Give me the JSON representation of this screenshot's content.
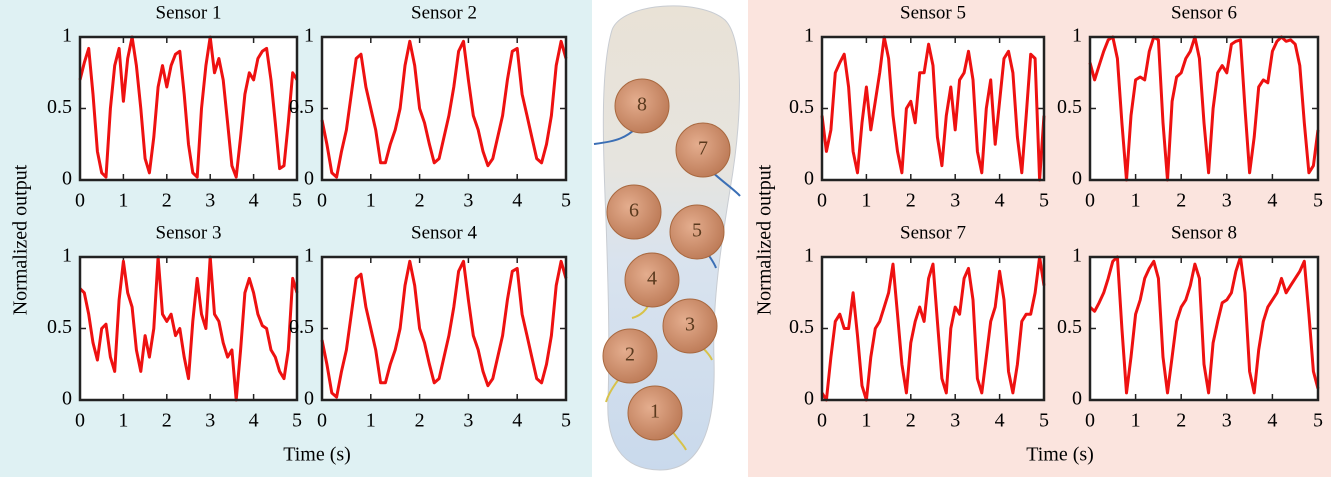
{
  "chart_data": [
    {
      "type": "line",
      "title": "Sensor 1",
      "color": "#ee1111",
      "xlim": [
        0,
        5
      ],
      "ylim": [
        0,
        1
      ],
      "xticks": [
        0,
        1,
        2,
        3,
        4,
        5
      ],
      "yticks": [
        0,
        0.5,
        1
      ],
      "x": [
        0,
        0.1,
        0.2,
        0.3,
        0.4,
        0.5,
        0.6,
        0.7,
        0.8,
        0.9,
        1,
        1.1,
        1.2,
        1.3,
        1.4,
        1.5,
        1.6,
        1.7,
        1.8,
        1.9,
        2,
        2.1,
        2.2,
        2.3,
        2.4,
        2.5,
        2.6,
        2.7,
        2.8,
        2.9,
        3,
        3.1,
        3.2,
        3.3,
        3.4,
        3.5,
        3.6,
        3.7,
        3.8,
        3.9,
        4,
        4.1,
        4.2,
        4.3,
        4.4,
        4.5,
        4.6,
        4.7,
        4.8,
        4.9,
        5
      ],
      "values": [
        0.7,
        0.82,
        0.92,
        0.6,
        0.2,
        0.05,
        0.02,
        0.5,
        0.8,
        0.92,
        0.55,
        0.85,
        1,
        0.8,
        0.5,
        0.15,
        0.05,
        0.3,
        0.65,
        0.8,
        0.65,
        0.8,
        0.88,
        0.9,
        0.6,
        0.25,
        0.05,
        0.02,
        0.5,
        0.8,
        1,
        0.75,
        0.85,
        0.7,
        0.4,
        0.1,
        0.02,
        0.3,
        0.6,
        0.75,
        0.7,
        0.85,
        0.9,
        0.92,
        0.7,
        0.4,
        0.08,
        0.1,
        0.4,
        0.75,
        0.7
      ]
    },
    {
      "type": "line",
      "title": "Sensor 2",
      "color": "#ee1111",
      "xlim": [
        0,
        5
      ],
      "ylim": [
        0,
        1
      ],
      "xticks": [
        0,
        1,
        2,
        3,
        4,
        5
      ],
      "yticks": [
        0,
        0.5,
        1
      ],
      "x": [
        0,
        0.1,
        0.2,
        0.3,
        0.4,
        0.5,
        0.6,
        0.7,
        0.8,
        0.9,
        1,
        1.1,
        1.2,
        1.3,
        1.4,
        1.5,
        1.6,
        1.7,
        1.8,
        1.9,
        2,
        2.1,
        2.2,
        2.3,
        2.4,
        2.5,
        2.6,
        2.7,
        2.8,
        2.9,
        3,
        3.1,
        3.2,
        3.3,
        3.4,
        3.5,
        3.6,
        3.7,
        3.8,
        3.9,
        4,
        4.1,
        4.2,
        4.3,
        4.4,
        4.5,
        4.6,
        4.7,
        4.8,
        4.9,
        5
      ],
      "values": [
        0.42,
        0.25,
        0.05,
        0.02,
        0.2,
        0.35,
        0.6,
        0.85,
        0.88,
        0.65,
        0.5,
        0.35,
        0.12,
        0.12,
        0.25,
        0.35,
        0.5,
        0.8,
        0.97,
        0.8,
        0.5,
        0.4,
        0.25,
        0.12,
        0.15,
        0.3,
        0.45,
        0.65,
        0.9,
        0.97,
        0.7,
        0.45,
        0.35,
        0.2,
        0.1,
        0.15,
        0.3,
        0.45,
        0.7,
        0.9,
        0.92,
        0.6,
        0.45,
        0.3,
        0.15,
        0.12,
        0.25,
        0.45,
        0.8,
        0.97,
        0.85
      ]
    },
    {
      "type": "line",
      "title": "Sensor 3",
      "color": "#ee1111",
      "xlim": [
        0,
        5
      ],
      "ylim": [
        0,
        1
      ],
      "xticks": [
        0,
        1,
        2,
        3,
        4,
        5
      ],
      "yticks": [
        0,
        0.5,
        1
      ],
      "x": [
        0,
        0.1,
        0.2,
        0.3,
        0.4,
        0.5,
        0.6,
        0.7,
        0.8,
        0.9,
        1,
        1.1,
        1.2,
        1.3,
        1.4,
        1.5,
        1.6,
        1.7,
        1.8,
        1.9,
        2,
        2.1,
        2.2,
        2.3,
        2.4,
        2.5,
        2.6,
        2.7,
        2.8,
        2.9,
        3,
        3.1,
        3.2,
        3.3,
        3.4,
        3.5,
        3.6,
        3.7,
        3.8,
        3.9,
        4,
        4.1,
        4.2,
        4.3,
        4.4,
        4.5,
        4.6,
        4.7,
        4.8,
        4.9,
        5
      ],
      "values": [
        0.78,
        0.75,
        0.6,
        0.4,
        0.28,
        0.5,
        0.53,
        0.3,
        0.2,
        0.7,
        0.97,
        0.75,
        0.65,
        0.35,
        0.2,
        0.45,
        0.3,
        0.5,
        1,
        0.6,
        0.55,
        0.6,
        0.45,
        0.5,
        0.3,
        0.15,
        0.55,
        0.85,
        0.6,
        0.5,
        1,
        0.6,
        0.55,
        0.4,
        0.3,
        0.35,
        0,
        0.35,
        0.75,
        0.85,
        0.75,
        0.6,
        0.52,
        0.5,
        0.35,
        0.3,
        0.2,
        0.15,
        0.35,
        0.85,
        0.75
      ]
    },
    {
      "type": "line",
      "title": "Sensor 4",
      "color": "#ee1111",
      "xlim": [
        0,
        5
      ],
      "ylim": [
        0,
        1
      ],
      "xticks": [
        0,
        1,
        2,
        3,
        4,
        5
      ],
      "yticks": [
        0,
        0.5,
        1
      ],
      "x": [
        0,
        0.1,
        0.2,
        0.3,
        0.4,
        0.5,
        0.6,
        0.7,
        0.8,
        0.9,
        1,
        1.1,
        1.2,
        1.3,
        1.4,
        1.5,
        1.6,
        1.7,
        1.8,
        1.9,
        2,
        2.1,
        2.2,
        2.3,
        2.4,
        2.5,
        2.6,
        2.7,
        2.8,
        2.9,
        3,
        3.1,
        3.2,
        3.3,
        3.4,
        3.5,
        3.6,
        3.7,
        3.8,
        3.9,
        4,
        4.1,
        4.2,
        4.3,
        4.4,
        4.5,
        4.6,
        4.7,
        4.8,
        4.9,
        5
      ],
      "values": [
        0.42,
        0.25,
        0.05,
        0.02,
        0.2,
        0.35,
        0.6,
        0.85,
        0.88,
        0.65,
        0.5,
        0.35,
        0.12,
        0.12,
        0.25,
        0.35,
        0.5,
        0.8,
        0.97,
        0.8,
        0.5,
        0.4,
        0.25,
        0.12,
        0.15,
        0.3,
        0.45,
        0.65,
        0.9,
        0.97,
        0.7,
        0.45,
        0.35,
        0.2,
        0.1,
        0.15,
        0.3,
        0.45,
        0.7,
        0.9,
        0.92,
        0.6,
        0.45,
        0.3,
        0.15,
        0.12,
        0.25,
        0.45,
        0.8,
        0.97,
        0.85
      ]
    },
    {
      "type": "line",
      "title": "Sensor 5",
      "color": "#ee1111",
      "xlim": [
        0,
        5
      ],
      "ylim": [
        0,
        1
      ],
      "xticks": [
        0,
        1,
        2,
        3,
        4,
        5
      ],
      "yticks": [
        0,
        0.5,
        1
      ],
      "x": [
        0,
        0.1,
        0.2,
        0.3,
        0.4,
        0.5,
        0.6,
        0.7,
        0.8,
        0.9,
        1,
        1.1,
        1.2,
        1.3,
        1.4,
        1.5,
        1.6,
        1.7,
        1.8,
        1.9,
        2,
        2.1,
        2.2,
        2.3,
        2.4,
        2.5,
        2.6,
        2.7,
        2.8,
        2.9,
        3,
        3.1,
        3.2,
        3.3,
        3.4,
        3.5,
        3.6,
        3.7,
        3.8,
        3.9,
        4,
        4.1,
        4.2,
        4.3,
        4.4,
        4.5,
        4.6,
        4.7,
        4.8,
        4.9,
        5
      ],
      "values": [
        0.45,
        0.2,
        0.35,
        0.75,
        0.82,
        0.88,
        0.65,
        0.2,
        0.05,
        0.4,
        0.65,
        0.35,
        0.55,
        0.75,
        1,
        0.85,
        0.45,
        0.2,
        0.05,
        0.5,
        0.55,
        0.4,
        0.75,
        0.75,
        0.95,
        0.8,
        0.3,
        0.1,
        0.45,
        0.65,
        0.35,
        0.7,
        0.75,
        0.9,
        0.7,
        0.2,
        0.05,
        0.5,
        0.7,
        0.25,
        0.55,
        0.85,
        0.9,
        0.75,
        0.3,
        0.05,
        0.45,
        0.88,
        0.85,
        0,
        0.45
      ]
    },
    {
      "type": "line",
      "title": "Sensor 6",
      "color": "#ee1111",
      "xlim": [
        0,
        5
      ],
      "ylim": [
        0,
        1
      ],
      "xticks": [
        0,
        1,
        2,
        3,
        4,
        5
      ],
      "yticks": [
        0,
        0.5,
        1
      ],
      "x": [
        0,
        0.1,
        0.2,
        0.3,
        0.4,
        0.5,
        0.6,
        0.7,
        0.8,
        0.9,
        1,
        1.1,
        1.2,
        1.3,
        1.4,
        1.5,
        1.6,
        1.7,
        1.8,
        1.9,
        2,
        2.1,
        2.2,
        2.3,
        2.4,
        2.5,
        2.6,
        2.7,
        2.8,
        2.9,
        3,
        3.1,
        3.2,
        3.3,
        3.4,
        3.5,
        3.6,
        3.7,
        3.8,
        3.9,
        4,
        4.1,
        4.2,
        4.3,
        4.4,
        4.5,
        4.6,
        4.7,
        4.8,
        4.9,
        5
      ],
      "values": [
        0.82,
        0.7,
        0.8,
        0.9,
        0.98,
        1,
        0.85,
        0.4,
        0,
        0.45,
        0.7,
        0.72,
        0.7,
        0.9,
        1,
        0.98,
        0.4,
        0,
        0.55,
        0.72,
        0.75,
        0.85,
        0.9,
        1,
        0.85,
        0.4,
        0.05,
        0.5,
        0.75,
        0.8,
        0.75,
        0.95,
        0.97,
        0.98,
        0.5,
        0.05,
        0.3,
        0.65,
        0.7,
        0.68,
        0.9,
        0.97,
        1,
        0.97,
        0.98,
        0.95,
        0.8,
        0.4,
        0.05,
        0.1,
        0.35
      ]
    },
    {
      "type": "line",
      "title": "Sensor 7",
      "color": "#ee1111",
      "xlim": [
        0,
        5
      ],
      "ylim": [
        0,
        1
      ],
      "xticks": [
        0,
        1,
        2,
        3,
        4,
        5
      ],
      "yticks": [
        0,
        0.5,
        1
      ],
      "x": [
        0,
        0.1,
        0.2,
        0.3,
        0.4,
        0.5,
        0.6,
        0.7,
        0.8,
        0.9,
        1,
        1.1,
        1.2,
        1.3,
        1.4,
        1.5,
        1.6,
        1.7,
        1.8,
        1.9,
        2,
        2.1,
        2.2,
        2.3,
        2.4,
        2.5,
        2.6,
        2.7,
        2.8,
        2.9,
        3,
        3.1,
        3.2,
        3.3,
        3.4,
        3.5,
        3.6,
        3.7,
        3.8,
        3.9,
        4,
        4.1,
        4.2,
        4.3,
        4.4,
        4.5,
        4.6,
        4.7,
        4.8,
        4.9,
        5
      ],
      "values": [
        0.05,
        0,
        0.3,
        0.55,
        0.6,
        0.5,
        0.5,
        0.75,
        0.45,
        0.1,
        0,
        0.3,
        0.5,
        0.55,
        0.65,
        0.75,
        0.95,
        0.6,
        0.25,
        0.05,
        0.4,
        0.55,
        0.65,
        0.55,
        0.85,
        0.95,
        0.55,
        0.15,
        0.05,
        0.5,
        0.65,
        0.6,
        0.85,
        0.92,
        0.7,
        0.15,
        0.05,
        0.3,
        0.55,
        0.65,
        0.9,
        0.7,
        0.2,
        0.05,
        0.25,
        0.55,
        0.6,
        0.6,
        0.75,
        1,
        0.8
      ]
    },
    {
      "type": "line",
      "title": "Sensor 8",
      "color": "#ee1111",
      "xlim": [
        0,
        5
      ],
      "ylim": [
        0,
        1
      ],
      "xticks": [
        0,
        1,
        2,
        3,
        4,
        5
      ],
      "yticks": [
        0,
        0.5,
        1
      ],
      "x": [
        0,
        0.1,
        0.2,
        0.3,
        0.4,
        0.5,
        0.6,
        0.7,
        0.8,
        0.9,
        1,
        1.1,
        1.2,
        1.3,
        1.4,
        1.5,
        1.6,
        1.7,
        1.8,
        1.9,
        2,
        2.1,
        2.2,
        2.3,
        2.4,
        2.5,
        2.6,
        2.7,
        2.8,
        2.9,
        3,
        3.1,
        3.2,
        3.3,
        3.4,
        3.5,
        3.6,
        3.7,
        3.8,
        3.9,
        4,
        4.1,
        4.2,
        4.3,
        4.4,
        4.5,
        4.6,
        4.7,
        4.8,
        4.9,
        5
      ],
      "values": [
        0.65,
        0.62,
        0.68,
        0.75,
        0.85,
        0.97,
        1,
        0.5,
        0.05,
        0.3,
        0.6,
        0.7,
        0.85,
        0.92,
        0.97,
        0.85,
        0.3,
        0.05,
        0.3,
        0.55,
        0.65,
        0.7,
        0.8,
        0.95,
        0.85,
        0.25,
        0.05,
        0.4,
        0.55,
        0.68,
        0.7,
        0.75,
        0.9,
        1,
        0.75,
        0.2,
        0.05,
        0.35,
        0.55,
        0.65,
        0.7,
        0.75,
        0.85,
        0.75,
        0.8,
        0.85,
        0.9,
        0.97,
        0.6,
        0.2,
        0.08
      ]
    }
  ],
  "panels": [
    {
      "ylabel": "Normalized output",
      "xlabel": "Time (s)"
    },
    {
      "ylabel": "Normalized output",
      "xlabel": "Time (s)"
    }
  ],
  "insole": {
    "sensors": [
      "1",
      "2",
      "3",
      "4",
      "5",
      "6",
      "7",
      "8"
    ]
  }
}
